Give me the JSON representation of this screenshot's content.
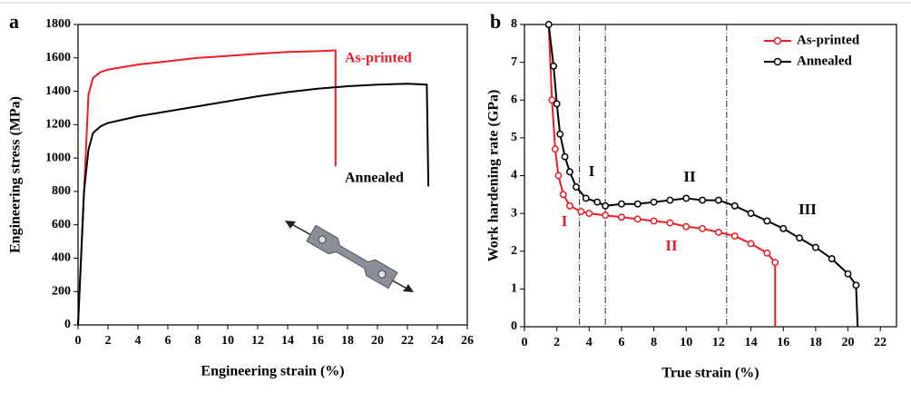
{
  "chart_data": [
    {
      "type": "line",
      "panel_label": "a",
      "xlabel": "Engineering strain (%)",
      "ylabel": "Engineering stress (MPa)",
      "xlim": [
        0,
        26
      ],
      "xticks": [
        0,
        2,
        4,
        6,
        8,
        10,
        12,
        14,
        16,
        18,
        20,
        22,
        24,
        26
      ],
      "ylim": [
        0,
        1800
      ],
      "yticks": [
        0,
        200,
        400,
        600,
        800,
        1000,
        1200,
        1400,
        1600,
        1800
      ],
      "series": [
        {
          "name": "As-printed",
          "color": "#ee1c25",
          "x": [
            0,
            0.5,
            0.7,
            1,
            1.5,
            2,
            4,
            6,
            8,
            10,
            12,
            14,
            16,
            17.2,
            17.2
          ],
          "values": [
            0,
            1000,
            1380,
            1480,
            1515,
            1530,
            1560,
            1580,
            1600,
            1612,
            1625,
            1635,
            1640,
            1645,
            950
          ]
        },
        {
          "name": "Annealed",
          "color": "#000000",
          "x": [
            0,
            0.4,
            0.7,
            1,
            1.5,
            2,
            4,
            6,
            8,
            10,
            12,
            14,
            16,
            18,
            20,
            22,
            23.3,
            23.4
          ],
          "values": [
            0,
            800,
            1050,
            1150,
            1190,
            1210,
            1250,
            1280,
            1310,
            1340,
            1370,
            1395,
            1415,
            1430,
            1440,
            1445,
            1440,
            830
          ]
        }
      ]
    },
    {
      "type": "line",
      "panel_label": "b",
      "markers": true,
      "legend": "upper right",
      "xlabel": "True strain (%)",
      "ylabel": "Work hardening rate (GPa)",
      "xlim": [
        0,
        23
      ],
      "xticks": [
        0,
        2,
        4,
        6,
        8,
        10,
        12,
        14,
        16,
        18,
        20,
        22
      ],
      "ylim": [
        0,
        8
      ],
      "yticks": [
        0,
        1,
        2,
        3,
        4,
        5,
        6,
        7,
        8
      ],
      "vlines": [
        3.4,
        5,
        12.5
      ],
      "series": [
        {
          "name": "As-printed",
          "color": "#ee1c25",
          "x": [
            1.5,
            1.7,
            1.9,
            2.1,
            2.4,
            2.8,
            3.5,
            4,
            5,
            6,
            7,
            8,
            9,
            10,
            11,
            12,
            13,
            14,
            15,
            15.5,
            15.5
          ],
          "values": [
            8,
            6,
            4.7,
            4,
            3.5,
            3.2,
            3.05,
            3,
            2.95,
            2.9,
            2.85,
            2.8,
            2.75,
            2.65,
            2.6,
            2.5,
            2.4,
            2.2,
            1.95,
            1.7,
            0
          ]
        },
        {
          "name": "Annealed",
          "color": "#000000",
          "x": [
            1.5,
            1.8,
            2,
            2.2,
            2.5,
            2.8,
            3.2,
            3.8,
            4.5,
            5,
            6,
            7,
            8,
            9,
            10,
            11,
            12,
            13,
            14,
            15,
            16,
            17,
            18,
            19,
            20,
            20.5,
            20.6
          ],
          "values": [
            8,
            6.9,
            5.9,
            5.1,
            4.5,
            4.1,
            3.7,
            3.4,
            3.3,
            3.2,
            3.25,
            3.25,
            3.3,
            3.35,
            3.4,
            3.35,
            3.35,
            3.2,
            3,
            2.8,
            2.6,
            2.35,
            2.1,
            1.8,
            1.4,
            1.1,
            0
          ]
        }
      ],
      "annotations": [
        {
          "text": "I",
          "color": "#000000"
        },
        {
          "text": "II",
          "color": "#000000"
        },
        {
          "text": "III",
          "color": "#000000"
        },
        {
          "text": "I",
          "color": "#ee1c25"
        },
        {
          "text": "II",
          "color": "#ee1c25"
        }
      ]
    }
  ]
}
